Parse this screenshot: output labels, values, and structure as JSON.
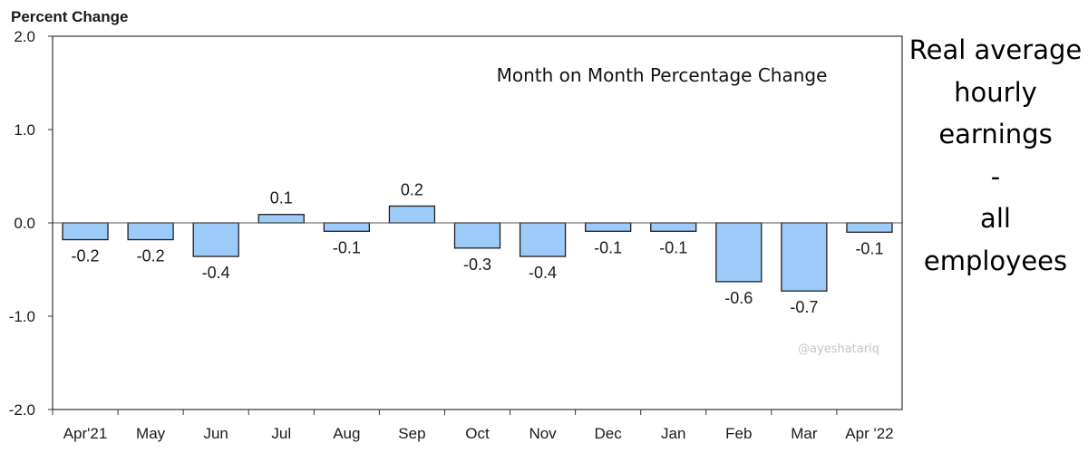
{
  "chart_data": {
    "type": "bar",
    "ylabel": "Percent Change",
    "inner_title": "Month on Month Percentage Change",
    "categories": [
      "Apr'21",
      "May",
      "Jun",
      "Jul",
      "Aug",
      "Sep",
      "Oct",
      "Nov",
      "Dec",
      "Jan",
      "Feb",
      "Mar",
      "Apr '22"
    ],
    "values": [
      -0.2,
      -0.2,
      -0.4,
      0.1,
      -0.1,
      0.2,
      -0.3,
      -0.4,
      -0.1,
      -0.1,
      -0.6,
      -0.7,
      -0.1
    ],
    "value_labels": [
      "-0.2",
      "-0.2",
      "-0.4",
      "0.1",
      "-0.1",
      "0.2",
      "-0.3",
      "-0.4",
      "-0.1",
      "-0.1",
      "-0.6",
      "-0.7",
      "-0.1"
    ],
    "plotted_values": [
      -0.18,
      -0.18,
      -0.36,
      0.09,
      -0.09,
      0.18,
      -0.27,
      -0.36,
      -0.09,
      -0.09,
      -0.63,
      -0.73,
      -0.1
    ],
    "ylim": [
      -2.0,
      2.0
    ],
    "yticks": [
      "2.0",
      "1.0",
      "0.0",
      "-1.0",
      "-2.0"
    ],
    "ytick_values": [
      2.0,
      1.0,
      0.0,
      -1.0,
      -2.0
    ],
    "grid": false,
    "bar_color": "#9ccbfa",
    "bar_edge_color": "#1f1f1f"
  },
  "side_title": {
    "lines": [
      "Real average",
      "hourly",
      "earnings",
      "-",
      "all",
      "employees"
    ]
  },
  "watermark": "@ayeshatariq"
}
